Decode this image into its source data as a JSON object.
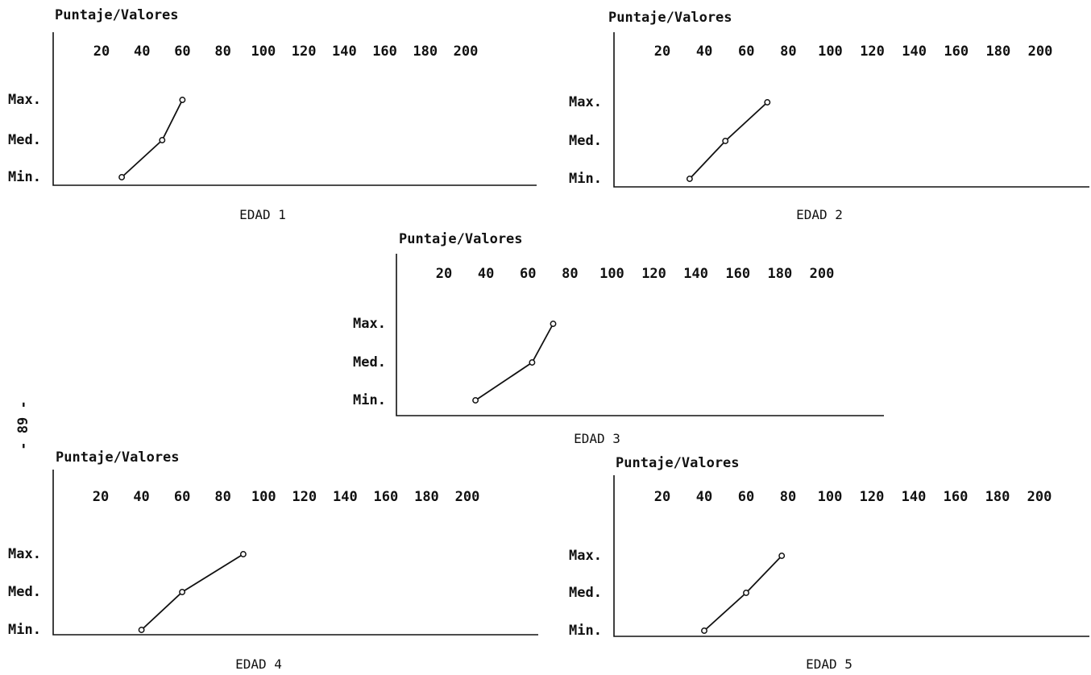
{
  "page_number": "- 89 -",
  "chart_data": [
    {
      "type": "line",
      "title": "Puntaje/Valores",
      "caption": "EDAD 1",
      "x_ticks": [
        "20",
        "40",
        "60",
        "80",
        "100",
        "120",
        "140",
        "160",
        "180",
        "200"
      ],
      "categories": [
        "Min.",
        "Med.",
        "Max."
      ],
      "series": [
        {
          "values": [
            30,
            50,
            60
          ]
        }
      ]
    },
    {
      "type": "line",
      "title": "Puntaje/Valores",
      "caption": "EDAD 2",
      "x_ticks": [
        "20",
        "40",
        "60",
        "80",
        "100",
        "120",
        "140",
        "160",
        "180",
        "200"
      ],
      "categories": [
        "Min.",
        "Med.",
        "Max."
      ],
      "series": [
        {
          "values": [
            33,
            50,
            70
          ]
        }
      ]
    },
    {
      "type": "line",
      "title": "Puntaje/Valores",
      "caption": "EDAD 3",
      "x_ticks": [
        "20",
        "40",
        "60",
        "80",
        "100",
        "120",
        "140",
        "160",
        "180",
        "200"
      ],
      "categories": [
        "Min.",
        "Med.",
        "Max."
      ],
      "series": [
        {
          "values": [
            35,
            62,
            72
          ]
        }
      ]
    },
    {
      "type": "line",
      "title": "Puntaje/Valores",
      "caption": "EDAD 4",
      "x_ticks": [
        "20",
        "40",
        "60",
        "80",
        "100",
        "120",
        "140",
        "160",
        "180",
        "200"
      ],
      "categories": [
        "Min.",
        "Med.",
        "Max."
      ],
      "series": [
        {
          "values": [
            40,
            60,
            90
          ]
        }
      ]
    },
    {
      "type": "line",
      "title": "Puntaje/Valores",
      "caption": "EDAD 5",
      "x_ticks": [
        "20",
        "40",
        "60",
        "80",
        "100",
        "120",
        "140",
        "160",
        "180",
        "200"
      ],
      "categories": [
        "Min.",
        "Med.",
        "Max."
      ],
      "series": [
        {
          "values": [
            40,
            60,
            77
          ]
        }
      ]
    }
  ]
}
